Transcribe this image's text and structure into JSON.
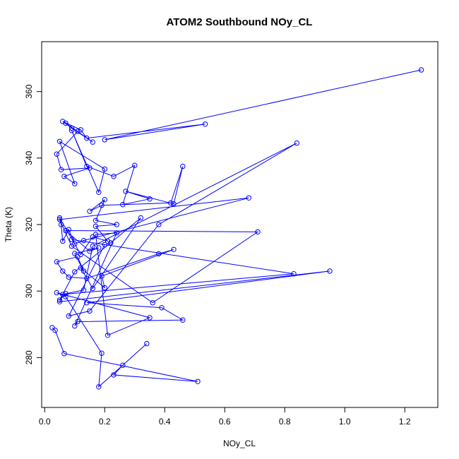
{
  "chart_data": {
    "type": "scatter",
    "title": "ATOM2 Southbound NOy_CL",
    "xlabel": "NOy_CL",
    "ylabel": "Theta (K)",
    "xlim": [
      -0.01,
      1.31
    ],
    "ylim": [
      265,
      375
    ],
    "x_ticks": [
      0.0,
      0.2,
      0.4,
      0.6,
      0.8,
      1.0,
      1.2
    ],
    "x_tick_labels": [
      "0.0",
      "0.2",
      "0.4",
      "0.6",
      "0.8",
      "1.0",
      "1.2"
    ],
    "y_ticks": [
      280,
      300,
      320,
      340,
      360
    ],
    "y_tick_labels": [
      "280",
      "300",
      "320",
      "340",
      "360"
    ],
    "grid": false,
    "style": "points connected by lines",
    "color": "#0000ff",
    "series": [
      {
        "x": [
          1.255,
          0.2,
          0.535,
          0.14,
          0.12,
          0.06,
          0.09,
          0.16,
          0.07,
          0.11,
          0.04,
          0.055,
          0.15,
          0.065,
          0.1,
          0.05,
          0.2,
          0.18,
          0.09,
          0.14,
          0.23,
          0.3,
          0.26,
          0.35,
          0.27,
          0.43,
          0.46,
          0.42,
          0.19,
          0.15,
          0.2,
          0.17,
          0.24,
          0.17,
          0.21,
          0.16,
          0.12,
          0.05,
          0.055,
          0.06,
          0.08,
          0.1,
          0.13,
          0.68,
          0.05,
          0.09,
          0.36,
          0.71,
          0.07,
          0.15,
          0.18,
          0.1,
          0.13,
          0.11,
          0.04,
          0.06,
          0.08,
          0.14,
          0.38,
          0.43,
          0.19,
          0.2,
          0.12,
          0.16,
          0.32,
          0.22,
          0.1,
          0.05,
          0.07,
          0.13,
          0.16,
          0.84,
          0.38,
          0.15,
          0.08,
          0.2,
          0.09,
          0.83,
          0.06,
          0.05,
          0.95,
          0.14,
          0.39,
          0.46,
          0.11,
          0.1,
          0.24,
          0.17,
          0.21,
          0.35,
          0.04,
          0.07,
          0.19,
          0.18,
          0.34,
          0.26,
          0.23,
          0.51,
          0.065,
          0.035,
          0.025
        ],
        "y": [
          366.5,
          345.5,
          350.2,
          346.0,
          348.5,
          351.0,
          349.0,
          344.8,
          350.5,
          348.0,
          341.2,
          336.5,
          337.0,
          334.5,
          332.3,
          345.0,
          336.7,
          329.7,
          348.3,
          337.5,
          334.5,
          337.8,
          326.0,
          327.7,
          330.0,
          326.2,
          337.5,
          326.5,
          325.8,
          324.0,
          327.5,
          321.2,
          320.0,
          319.5,
          315.0,
          316.3,
          311.0,
          322.0,
          320.0,
          315.0,
          318.5,
          314.2,
          315.2,
          328.0,
          321.5,
          313.5,
          296.5,
          317.8,
          318.2,
          312.0,
          313.0,
          311.3,
          306.0,
          310.3,
          308.8,
          306.0,
          304.2,
          303.8,
          311.2,
          312.5,
          304.5,
          301.0,
          307.0,
          300.8,
          322.0,
          314.5,
          305.8,
          297.3,
          299.2,
          300.3,
          313.5,
          344.5,
          320.0,
          294.0,
          292.5,
          314.0,
          315.5,
          305.2,
          299.0,
          296.8,
          306.0,
          296.5,
          295.0,
          291.3,
          290.8,
          289.5,
          317.5,
          317.0,
          286.7,
          292.0,
          299.5,
          298.3,
          281.3,
          271.2,
          284.2,
          277.7,
          274.8,
          272.8,
          281.2,
          288.2,
          289.0
        ]
      }
    ]
  }
}
